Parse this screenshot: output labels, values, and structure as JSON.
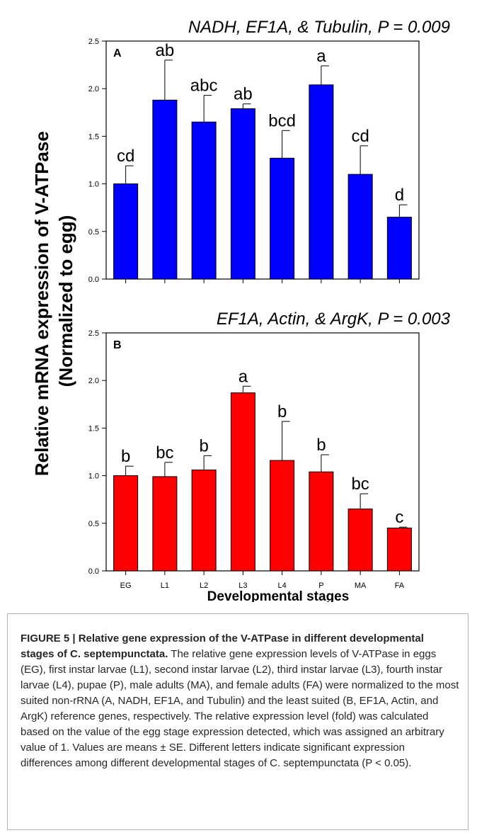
{
  "y_axis_title_line1": "Relative mRNA expression of V-ATPase",
  "y_axis_title_line2": "(Normalized to egg)",
  "x_axis_title": "Developmental stages",
  "colors": {
    "panel_a": "#0000ff",
    "panel_b": "#ff0000"
  },
  "chart_data": [
    {
      "type": "bar",
      "panel_label": "A",
      "title": "NADH, EF1A, & Tubulin, P = 0.009",
      "categories": [
        "EG",
        "L1",
        "L2",
        "L3",
        "L4",
        "P",
        "MA",
        "FA"
      ],
      "values": [
        1.0,
        1.88,
        1.65,
        1.79,
        1.27,
        2.04,
        1.1,
        0.65
      ],
      "errors": [
        0.19,
        0.42,
        0.28,
        0.05,
        0.29,
        0.2,
        0.3,
        0.13
      ],
      "letters": [
        "cd",
        "ab",
        "abc",
        "ab",
        "bcd",
        "a",
        "cd",
        "d"
      ],
      "ylim": [
        0,
        2.5
      ],
      "yticks": [
        "0.0",
        "0.5",
        "1.0",
        "1.5",
        "2.0",
        "2.5"
      ],
      "color": "#0000ff"
    },
    {
      "type": "bar",
      "panel_label": "B",
      "title": "EF1A, Actin, & ArgK, P = 0.003",
      "categories": [
        "EG",
        "L1",
        "L2",
        "L3",
        "L4",
        "P",
        "MA",
        "FA"
      ],
      "values": [
        1.0,
        0.99,
        1.06,
        1.87,
        1.16,
        1.04,
        0.65,
        0.45
      ],
      "errors": [
        0.1,
        0.15,
        0.15,
        0.07,
        0.41,
        0.18,
        0.16,
        0.01
      ],
      "letters": [
        "b",
        "bc",
        "b",
        "a",
        "b",
        "b",
        "bc",
        "c"
      ],
      "ylim": [
        0,
        2.5
      ],
      "yticks": [
        "0.0",
        "0.5",
        "1.0",
        "1.5",
        "2.0",
        "2.5"
      ],
      "color": "#ff0000"
    }
  ],
  "caption": {
    "label": "FIGURE 5 | Relative gene expression of the V-ATPase in different developmental stages of C. septempunctata.",
    "text": "The relative gene expression levels of V-ATPase in eggs (EG), first instar larvae (L1), second instar larvae (L2), third instar larvae (L3), fourth instar larvae (L4), pupae (P), male adults (MA), and female adults (FA) were normalized to the most suited non-rRNA (A, NADH, EF1A, and Tubulin) and the least suited (B, EF1A, Actin, and ArgK) reference genes, respectively. The relative expression level (fold) was calculated based on the value of the egg stage expression detected, which was assigned an arbitrary value of 1. Values are means ± SE. Different letters indicate significant expression differences among different developmental stages of C. septempunctata (P < 0.05)."
  }
}
